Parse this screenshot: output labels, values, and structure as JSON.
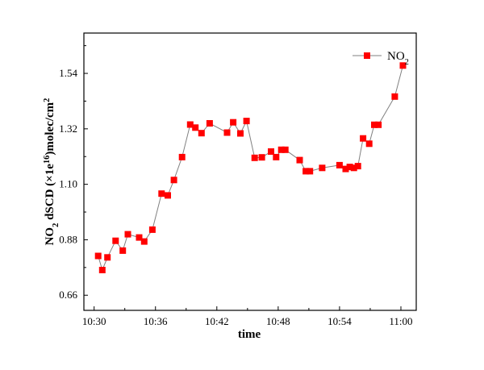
{
  "chart_data": {
    "type": "line",
    "title": "",
    "xlabel": "time",
    "ylabel": {
      "parts": [
        {
          "t": "NO",
          "s": "normal"
        },
        {
          "t": "2",
          "s": "sub"
        },
        {
          "t": " dSCD (×1e",
          "s": "normal"
        },
        {
          "t": "16",
          "s": "sup"
        },
        {
          "t": ")molec/cm",
          "s": "normal"
        },
        {
          "t": "2",
          "s": "sup"
        }
      ]
    },
    "x_ticks": [
      "10:30",
      "10:36",
      "10:42",
      "10:48",
      "10:54",
      "11:00"
    ],
    "x_tick_minutes": [
      0,
      6,
      12,
      18,
      24,
      30
    ],
    "y_ticks": [
      "0.66",
      "0.88",
      "1.10",
      "1.32",
      "1.54"
    ],
    "xlim_minutes": [
      -1,
      31.5
    ],
    "ylim": [
      0.6,
      1.7
    ],
    "grid": false,
    "legend_position": "top-right",
    "series": [
      {
        "name": "NO2",
        "legend": {
          "parts": [
            {
              "t": "NO",
              "s": "normal"
            },
            {
              "t": "2",
              "s": "sub"
            }
          ]
        },
        "color": "#ff0000",
        "line_color": "#808080",
        "marker": "square",
        "x_minutes": [
          0.4,
          0.8,
          1.3,
          2.1,
          2.8,
          3.3,
          4.4,
          4.9,
          5.7,
          6.6,
          7.2,
          7.8,
          8.6,
          9.4,
          9.9,
          10.5,
          11.3,
          13.0,
          13.6,
          14.3,
          14.9,
          15.7,
          16.4,
          17.3,
          17.8,
          18.3,
          18.7,
          20.1,
          20.7,
          21.1,
          22.3,
          24.0,
          24.6,
          25.0,
          25.4,
          25.8,
          26.3,
          26.9,
          27.4,
          27.8,
          29.4,
          30.2
        ],
        "values": [
          0.816,
          0.76,
          0.81,
          0.876,
          0.837,
          0.902,
          0.889,
          0.873,
          0.92,
          1.063,
          1.056,
          1.117,
          1.208,
          1.337,
          1.325,
          1.303,
          1.342,
          1.305,
          1.346,
          1.302,
          1.351,
          1.205,
          1.207,
          1.23,
          1.208,
          1.237,
          1.237,
          1.196,
          1.152,
          1.152,
          1.165,
          1.176,
          1.161,
          1.169,
          1.165,
          1.172,
          1.282,
          1.261,
          1.336,
          1.336,
          1.448,
          1.571
        ]
      }
    ]
  }
}
